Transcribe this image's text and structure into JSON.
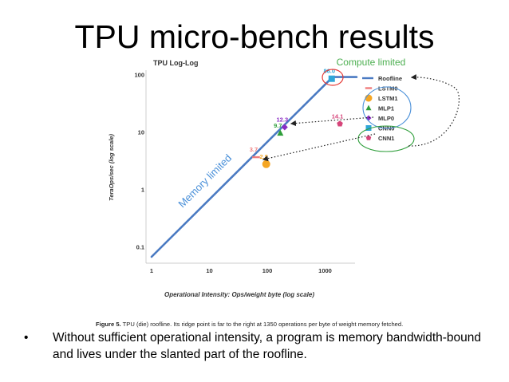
{
  "slide": {
    "title": "TPU micro-bench results",
    "bullet": "Without sufficient operational intensity, a program is memory bandwidth-bound and lives under the slanted part of the roofline.",
    "bullet_marker": "•"
  },
  "annotations": {
    "compute_limited": "Compute limited",
    "memory_limited": "Memory limited",
    "compute_color": "#4caf50",
    "memory_color": "#4a90d9"
  },
  "figure_caption": {
    "label": "Figure 5.",
    "text": "TPU (die) roofline. Its ridge point is far to the right at 1350 operations per byte of weight memory fetched."
  },
  "chart_data": {
    "type": "scatter",
    "title": "TPU Log-Log",
    "xlabel": "Operational Intensity: Ops/weight byte (log scale)",
    "ylabel": "TeraOps/sec (log scale)",
    "xscale": "log",
    "yscale": "log",
    "xlim": [
      1,
      5000
    ],
    "ylim": [
      0.05,
      100
    ],
    "xticks": [
      {
        "v": 1,
        "label": "1"
      },
      {
        "v": 10,
        "label": "10"
      },
      {
        "v": 100,
        "label": "100"
      },
      {
        "v": 1000,
        "label": "1000"
      }
    ],
    "yticks": [
      {
        "v": 100,
        "label": "100"
      },
      {
        "v": 10,
        "label": "10"
      },
      {
        "v": 1,
        "label": "1"
      },
      {
        "v": 0.1,
        "label": "0.1"
      }
    ],
    "grid": false,
    "legend_position": "right",
    "roofline": {
      "name": "Roofline",
      "peak": 92,
      "ridge": 1350,
      "x_start": 1,
      "x_end": 3500,
      "color": "#4a7ac2"
    },
    "series": [
      {
        "name": "LSTM0",
        "x": 64,
        "y": 3.7,
        "label": "3.7",
        "color": "#f07d7d",
        "marker": "dash"
      },
      {
        "name": "LSTM1",
        "x": 96,
        "y": 2.8,
        "label": "2.8",
        "color": "#f5a623",
        "marker": "circle"
      },
      {
        "name": "MLP1",
        "x": 168,
        "y": 9.7,
        "label": "9.7",
        "color": "#2e9e3a",
        "marker": "triangle"
      },
      {
        "name": "MLP0",
        "x": 200,
        "y": 12.3,
        "label": "12.3",
        "color": "#8a2cc4",
        "marker": "diamond"
      },
      {
        "name": "CNN0",
        "x": 1300,
        "y": 86.0,
        "label": "86.0",
        "color": "#2ea6d8",
        "marker": "square"
      },
      {
        "name": "CNN1",
        "x": 1800,
        "y": 14.1,
        "label": "14.1",
        "color": "#d6457a",
        "marker": "pentagon"
      }
    ]
  }
}
